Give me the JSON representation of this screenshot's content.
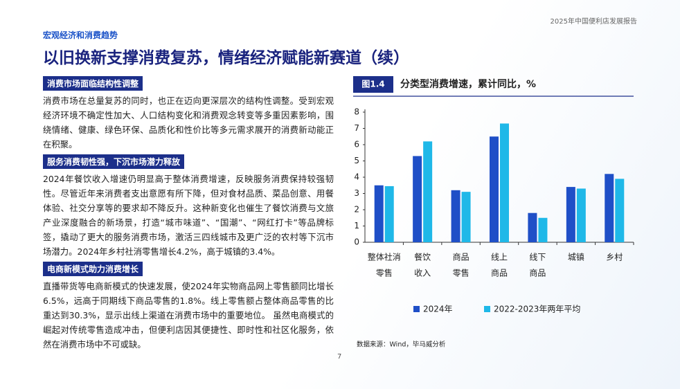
{
  "header": {
    "report": "2025年中国便利店发展报告",
    "section": "宏观经济和消费趋势",
    "title": "以旧换新支撑消费复苏，情绪经济赋能新赛道（续）"
  },
  "blocks": [
    {
      "heading": "消费市场面临结构性调整",
      "text": "消费市场在总量复苏的同时，也正在迈向更深层次的结构性调整。受到宏观经济环境不确定性加大、人口结构变化和消费观念转变等多重因素影响，围绕情绪、健康、绿色环保、品质化和性价比等多元需求展开的消费新动能正在积聚。"
    },
    {
      "heading": "服务消费韧性强，下沉市场潜力释放",
      "text": "2024年餐饮收入增速仍明显高于整体消费增速，反映服务消费保持较强韧性。尽管近年来消费者支出意愿有所下降，但对食材品质、菜品创意、用餐体验、社交分享等的要求却不降反升。这种新变化也催生了餐饮消费与文旅产业深度融合的新场景，打造“城市味道”、“国潮”、“网红打卡”等品牌标签，撬动了更大的服务消费市场，激活三四线城市及更广泛的农村等下沉市场潜力。2024年乡村社消零售增长4.2%，高于城镇的3.4%。"
    },
    {
      "heading": "电商新模式助力消费增长",
      "text": "直播带货等电商新模式的快速发展，使2024年实物商品网上零售额同比增长6.5%，远高于同期线下商品零售的1.8%。线上零售额占整体商品零售的比重达到30.3%，显示出线上渠道在消费市场中的重要地位。 虽然电商模式的崛起对传统零售造成冲击，但便利店因其便捷性、即时性和社区化服务，依然在消费市场中不可或缺。"
    }
  ],
  "chart_data": {
    "type": "bar",
    "badge": "图1.4",
    "title": "分类型消费增速，累计同比，%",
    "categories": [
      [
        "整体社消",
        "零售"
      ],
      [
        "餐饮",
        "收入"
      ],
      [
        "商品",
        "零售"
      ],
      [
        "线上",
        "商品"
      ],
      [
        "线下",
        "商品"
      ],
      [
        "城镇"
      ],
      [
        "乡村"
      ]
    ],
    "series": [
      {
        "name": "2024年",
        "color": "#1f4fc7",
        "values": [
          3.5,
          5.3,
          3.2,
          6.5,
          1.8,
          3.4,
          4.2
        ]
      },
      {
        "name": "2022-2023年两年平均",
        "color": "#1fb8e8",
        "values": [
          3.45,
          6.2,
          3.1,
          7.3,
          1.5,
          3.3,
          3.9
        ]
      }
    ],
    "ylim": [
      0,
      8
    ],
    "yticks": [
      0,
      1,
      2,
      3,
      4,
      5,
      6,
      7,
      8
    ],
    "source": "数据来源：Wind，毕马威分析"
  },
  "page_number": "7"
}
